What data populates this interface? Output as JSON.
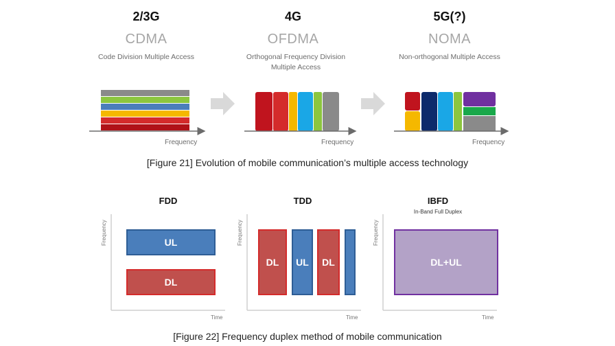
{
  "fig21": {
    "panels": [
      {
        "generation": "2/3G",
        "tech": "CDMA",
        "desc": "Code  Division  Multiple  Access",
        "axis_label": "Frequency"
      },
      {
        "generation": "4G",
        "tech": "OFDMA",
        "desc": "Orthogonal  Frequency  Division\nMultiple  Access",
        "axis_label": "Frequency"
      },
      {
        "generation": "5G(?)",
        "tech": "NOMA",
        "desc": "Non-orthogonal  Multiple  Access",
        "axis_label": "Frequency"
      }
    ],
    "caption": "[Figure 21] Evolution of mobile communication’s multiple access technology",
    "colors": {
      "red": "#c0141e",
      "yellow": "#f5b800",
      "blue": "#1aa7e6",
      "green": "#8cc63f",
      "gray": "#8a8a8a",
      "navy": "#0d2a6b",
      "purple": "#7030a0",
      "brightgreen": "#19a84a",
      "darkred": "#b01218"
    }
  },
  "fig22": {
    "panels": [
      {
        "title": "FDD",
        "subtitle": "",
        "y_label": "Frequency",
        "x_label": "Time",
        "blocks": [
          "UL",
          "DL"
        ]
      },
      {
        "title": "TDD",
        "subtitle": "",
        "y_label": "Frequency",
        "x_label": "Time",
        "blocks": [
          "DL",
          "UL",
          "DL",
          ""
        ]
      },
      {
        "title": "IBFD",
        "subtitle": "In-Band Full Duplex",
        "y_label": "Frequency",
        "x_label": "Time",
        "blocks": [
          "DL+UL"
        ]
      }
    ],
    "caption": "[Figure 22] Frequency duplex method of mobile communication",
    "colors": {
      "ul_fill": "#4a7ebb",
      "ul_border": "#2e5d95",
      "dl_fill": "#c0504d",
      "dl_border": "#d42b2b",
      "ibfd_fill": "#b3a2c7",
      "ibfd_border": "#7030a0"
    }
  }
}
